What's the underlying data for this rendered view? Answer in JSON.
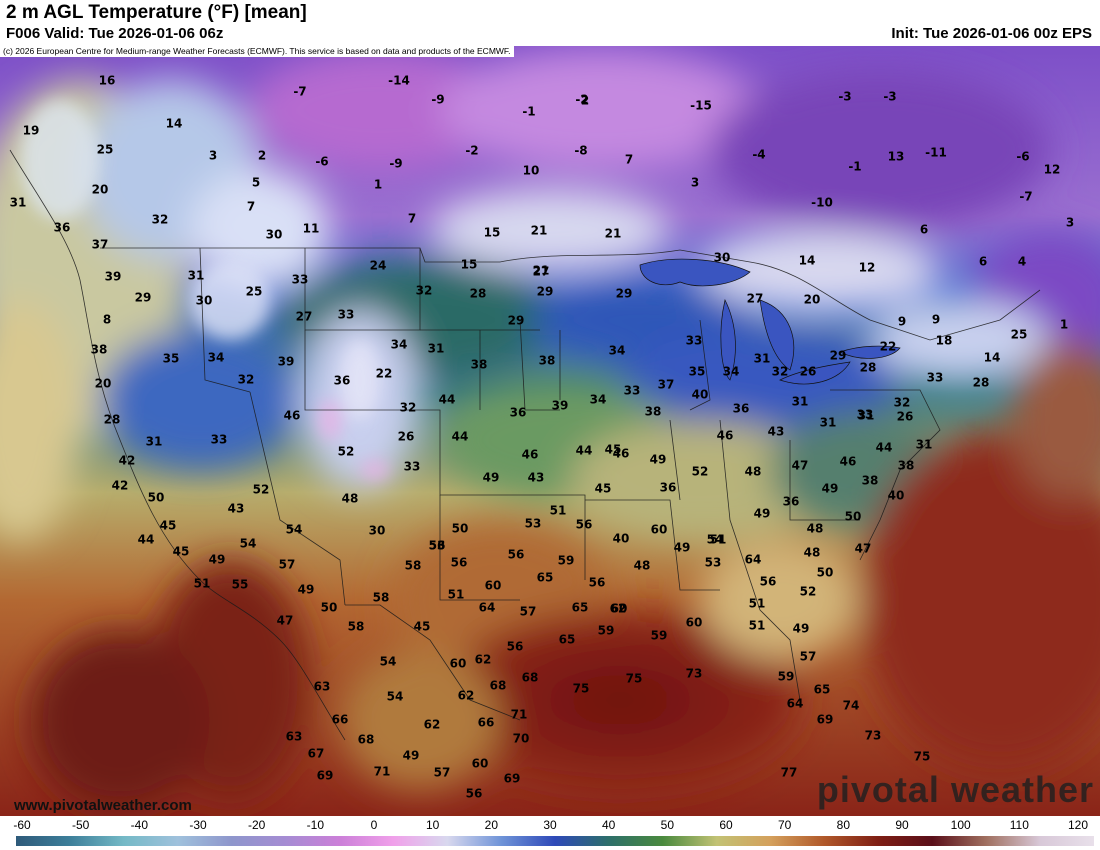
{
  "header": {
    "title": "2 m AGL Temperature (°F) [mean]",
    "valid": "F006 Valid: Tue 2026-01-06 06z",
    "init": "Init: Tue 2026-01-06 00z EPS",
    "copyright": "(c) 2026 European Centre for Medium-range Weather Forecasts (ECMWF). This service is based on data and products of the ECMWF."
  },
  "watermark": "pivotal weather",
  "website": "www.pivotalweather.com",
  "colorbar": {
    "ticks": [
      "-60",
      "-50",
      "-40",
      "-30",
      "-20",
      "-10",
      "0",
      "10",
      "20",
      "30",
      "40",
      "50",
      "60",
      "70",
      "80",
      "90",
      "100",
      "110",
      "120"
    ],
    "range": [
      -60,
      120
    ],
    "gradient": [
      "#2e5a7a",
      "#3d7f9a",
      "#74b9c6",
      "#9fc1dc",
      "#8e96cc",
      "#a58cd3",
      "#cb7fd8",
      "#f0a0ea",
      "#d8d8ee",
      "#6f94d8",
      "#2e49b8",
      "#2d6f6a",
      "#4a8a3e",
      "#c2c274",
      "#d4a05c",
      "#b0582a",
      "#7e1e14",
      "#5a0f1a",
      "#a07060",
      "#d8c8d8",
      "#e8e0ea"
    ]
  },
  "temperatures": [
    {
      "value": "16"
    },
    {
      "value": "14"
    },
    {
      "value": "-7"
    },
    {
      "value": "-14"
    },
    {
      "value": "-9"
    },
    {
      "value": "-1"
    },
    {
      "value": "-2"
    },
    {
      "value": "-15"
    },
    {
      "value": "-3"
    },
    {
      "value": "-3"
    },
    {
      "value": "19"
    },
    {
      "value": "25"
    },
    {
      "value": "3"
    },
    {
      "value": "2"
    },
    {
      "value": "-6"
    },
    {
      "value": "-9"
    },
    {
      "value": "-2"
    },
    {
      "value": "-8"
    },
    {
      "value": "7"
    },
    {
      "value": "-4"
    },
    {
      "value": "13"
    },
    {
      "value": "-11"
    },
    {
      "value": "-6"
    },
    {
      "value": "12"
    },
    {
      "value": "20"
    },
    {
      "value": "5"
    },
    {
      "value": "1"
    },
    {
      "value": "10"
    },
    {
      "value": "3"
    },
    {
      "value": "-10"
    },
    {
      "value": "-7"
    },
    {
      "value": "31"
    },
    {
      "value": "32"
    },
    {
      "value": "36"
    },
    {
      "value": "7"
    },
    {
      "value": "7"
    },
    {
      "value": "-1"
    },
    {
      "value": "6"
    },
    {
      "value": "2"
    },
    {
      "value": "3"
    },
    {
      "value": "37"
    },
    {
      "value": "30"
    },
    {
      "value": "11"
    },
    {
      "value": "15"
    },
    {
      "value": "21"
    },
    {
      "value": "21"
    },
    {
      "value": "24"
    },
    {
      "value": "15"
    },
    {
      "value": "21"
    },
    {
      "value": "30"
    },
    {
      "value": "14"
    },
    {
      "value": "12"
    },
    {
      "value": "6"
    },
    {
      "value": "4"
    },
    {
      "value": "39"
    },
    {
      "value": "31"
    },
    {
      "value": "33"
    },
    {
      "value": "25"
    },
    {
      "value": "27"
    },
    {
      "value": "29"
    },
    {
      "value": "32"
    },
    {
      "value": "28"
    },
    {
      "value": "20"
    },
    {
      "value": "29"
    },
    {
      "value": "30"
    },
    {
      "value": "27"
    },
    {
      "value": "33"
    },
    {
      "value": "29"
    },
    {
      "value": "29"
    },
    {
      "value": "27"
    },
    {
      "value": "9"
    },
    {
      "value": "9"
    },
    {
      "value": "1"
    },
    {
      "value": "8"
    },
    {
      "value": "38"
    },
    {
      "value": "35"
    },
    {
      "value": "34"
    },
    {
      "value": "39"
    },
    {
      "value": "34"
    },
    {
      "value": "31"
    },
    {
      "value": "38"
    },
    {
      "value": "38"
    },
    {
      "value": "34"
    },
    {
      "value": "33"
    },
    {
      "value": "29"
    },
    {
      "value": "22"
    },
    {
      "value": "18"
    },
    {
      "value": "25"
    },
    {
      "value": "14"
    },
    {
      "value": "20"
    },
    {
      "value": "32"
    },
    {
      "value": "36"
    },
    {
      "value": "22"
    },
    {
      "value": "28"
    },
    {
      "value": "33"
    },
    {
      "value": "37"
    },
    {
      "value": "35"
    },
    {
      "value": "34"
    },
    {
      "value": "31"
    },
    {
      "value": "32"
    },
    {
      "value": "26"
    },
    {
      "value": "33"
    },
    {
      "value": "28"
    },
    {
      "value": "28"
    },
    {
      "value": "46"
    },
    {
      "value": "32"
    },
    {
      "value": "36"
    },
    {
      "value": "39"
    },
    {
      "value": "34"
    },
    {
      "value": "38"
    },
    {
      "value": "40"
    },
    {
      "value": "36"
    },
    {
      "value": "31"
    },
    {
      "value": "31"
    },
    {
      "value": "31"
    },
    {
      "value": "32"
    },
    {
      "value": "31"
    },
    {
      "value": "33"
    },
    {
      "value": "26"
    },
    {
      "value": "44"
    },
    {
      "value": "45"
    },
    {
      "value": "46"
    },
    {
      "value": "43"
    },
    {
      "value": "33"
    },
    {
      "value": "26"
    },
    {
      "value": "31"
    },
    {
      "value": "42"
    },
    {
      "value": "52"
    },
    {
      "value": "33"
    },
    {
      "value": "46"
    },
    {
      "value": "44"
    },
    {
      "value": "46"
    },
    {
      "value": "49"
    },
    {
      "value": "49"
    },
    {
      "value": "44"
    },
    {
      "value": "38"
    },
    {
      "value": "42"
    },
    {
      "value": "50"
    },
    {
      "value": "52"
    },
    {
      "value": "43"
    },
    {
      "value": "44"
    },
    {
      "value": "45"
    },
    {
      "value": "52"
    },
    {
      "value": "48"
    },
    {
      "value": "47"
    },
    {
      "value": "46"
    },
    {
      "value": "38"
    },
    {
      "value": "43"
    },
    {
      "value": "48"
    },
    {
      "value": "36"
    },
    {
      "value": "49"
    },
    {
      "value": "36"
    },
    {
      "value": "40"
    },
    {
      "value": "45"
    },
    {
      "value": "50"
    },
    {
      "value": "53"
    },
    {
      "value": "56"
    },
    {
      "value": "51"
    },
    {
      "value": "53"
    },
    {
      "value": "49"
    },
    {
      "value": "50"
    },
    {
      "value": "44"
    },
    {
      "value": "54"
    },
    {
      "value": "30"
    },
    {
      "value": "40"
    },
    {
      "value": "54"
    },
    {
      "value": "48"
    },
    {
      "value": "45"
    },
    {
      "value": "54"
    },
    {
      "value": "56"
    },
    {
      "value": "49"
    },
    {
      "value": "51"
    },
    {
      "value": "48"
    },
    {
      "value": "47"
    },
    {
      "value": "49"
    },
    {
      "value": "57"
    },
    {
      "value": "56"
    },
    {
      "value": "56"
    },
    {
      "value": "59"
    },
    {
      "value": "60"
    },
    {
      "value": "53"
    },
    {
      "value": "50"
    },
    {
      "value": "51"
    },
    {
      "value": "55"
    },
    {
      "value": "58"
    },
    {
      "value": "48"
    },
    {
      "value": "56"
    },
    {
      "value": "64"
    },
    {
      "value": "56"
    },
    {
      "value": "52"
    },
    {
      "value": "49"
    },
    {
      "value": "51"
    },
    {
      "value": "60"
    },
    {
      "value": "65"
    },
    {
      "value": "60"
    },
    {
      "value": "58"
    },
    {
      "value": "50"
    },
    {
      "value": "51"
    },
    {
      "value": "47"
    },
    {
      "value": "58"
    },
    {
      "value": "45"
    },
    {
      "value": "57"
    },
    {
      "value": "65"
    },
    {
      "value": "62"
    },
    {
      "value": "60"
    },
    {
      "value": "51"
    },
    {
      "value": "49"
    },
    {
      "value": "59"
    },
    {
      "value": "59"
    },
    {
      "value": "54"
    },
    {
      "value": "60"
    },
    {
      "value": "56"
    },
    {
      "value": "64"
    },
    {
      "value": "65"
    },
    {
      "value": "62"
    },
    {
      "value": "57"
    },
    {
      "value": "63"
    },
    {
      "value": "54"
    },
    {
      "value": "62"
    },
    {
      "value": "68"
    },
    {
      "value": "68"
    },
    {
      "value": "75"
    },
    {
      "value": "75"
    },
    {
      "value": "73"
    },
    {
      "value": "59"
    },
    {
      "value": "65"
    },
    {
      "value": "66"
    },
    {
      "value": "62"
    },
    {
      "value": "66"
    },
    {
      "value": "71"
    },
    {
      "value": "64"
    },
    {
      "value": "69"
    },
    {
      "value": "74"
    },
    {
      "value": "63"
    },
    {
      "value": "68"
    },
    {
      "value": "70"
    },
    {
      "value": "73"
    },
    {
      "value": "67"
    },
    {
      "value": "49"
    },
    {
      "value": "57"
    },
    {
      "value": "60"
    },
    {
      "value": "69"
    },
    {
      "value": "75"
    },
    {
      "value": "69"
    },
    {
      "value": "71"
    },
    {
      "value": "56"
    },
    {
      "value": "77"
    }
  ]
}
